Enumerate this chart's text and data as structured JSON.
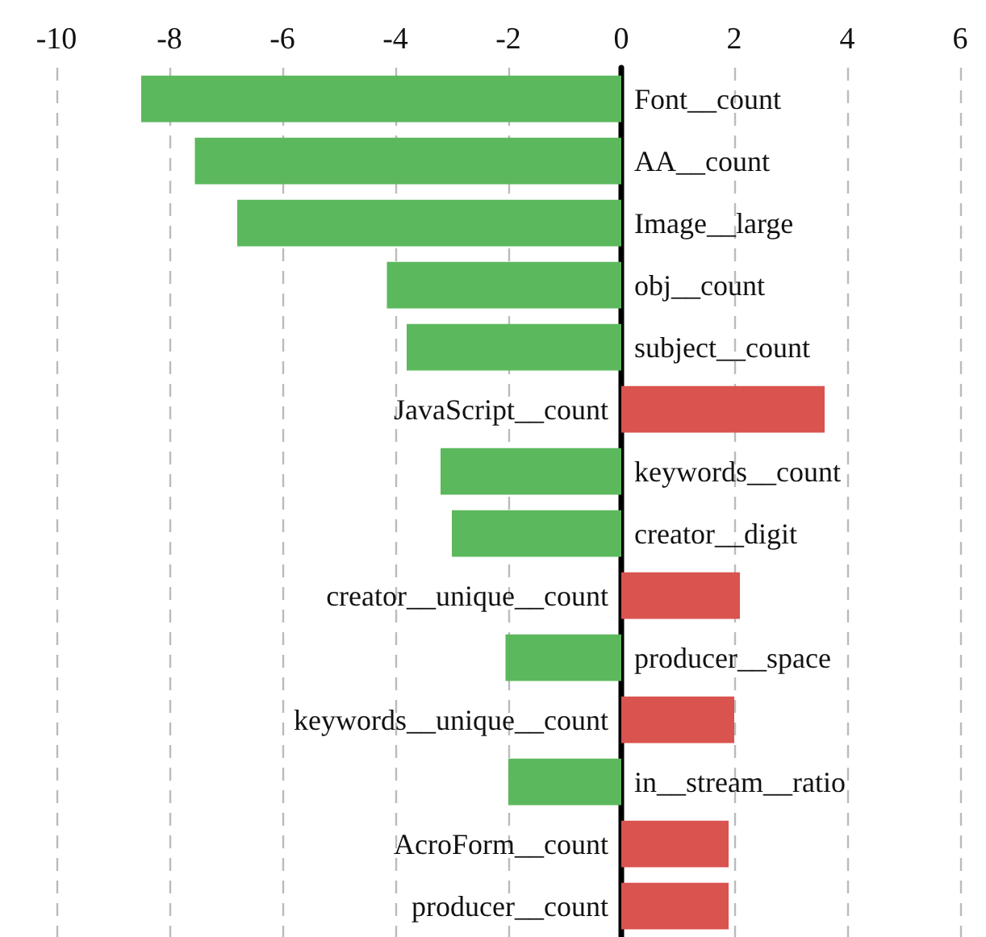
{
  "chart_data": {
    "type": "bar",
    "orientation": "horizontal",
    "categories": [
      "Font__count",
      "AA__count",
      "Image__large",
      "obj__count",
      "subject__count",
      "JavaScript__count",
      "keywords__count",
      "creator__digit",
      "creator__unique__count",
      "producer__space",
      "keywords__unique__count",
      "in__stream__ratio",
      "AcroForm__count",
      "producer__count"
    ],
    "values": [
      -8.5,
      -7.55,
      -6.8,
      -4.15,
      -3.8,
      3.6,
      -3.2,
      -3.0,
      2.1,
      -2.05,
      2.0,
      -2.0,
      1.9,
      1.9
    ],
    "colors": [
      "#5cb85c",
      "#5cb85c",
      "#5cb85c",
      "#5cb85c",
      "#5cb85c",
      "#d9534f",
      "#5cb85c",
      "#5cb85c",
      "#d9534f",
      "#5cb85c",
      "#d9534f",
      "#5cb85c",
      "#d9534f",
      "#d9534f"
    ],
    "xlim": [
      -10,
      6
    ],
    "xticks": [
      -10,
      -8,
      -6,
      -4,
      -2,
      0,
      2,
      4,
      6
    ],
    "grid": "x"
  }
}
